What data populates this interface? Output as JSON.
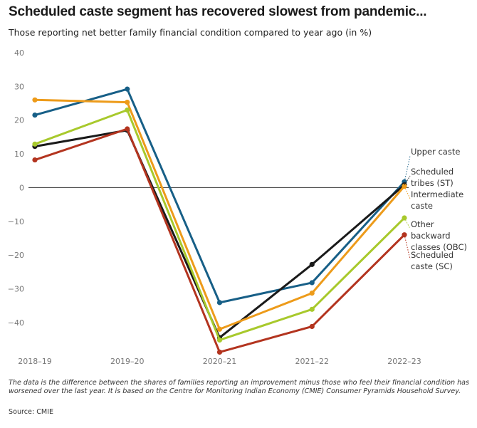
{
  "title": "Scheduled caste segment has recovered slowest from pandemic...",
  "subtitle": "Those reporting net better family financial condition compared to year ago (in %)",
  "note": "The data is the difference between the shares of families reporting an improvement minus those who feel their financial condition has worsened over the last year. It is based on the Centre for Monitoring Indian Economy (CMIE) Consumer Pyramids Household Survey.",
  "source": "Source: CMIE",
  "chart_data": {
    "type": "line",
    "title": "Scheduled caste segment has recovered slowest from pandemic...",
    "subtitle": "Those reporting net better family financial condition compared to year ago (in %)",
    "categories": [
      "2018–19",
      "2019–20",
      "2020–21",
      "2021–22",
      "2022–23"
    ],
    "ylim": [
      -50,
      40
    ],
    "yticks": [
      40,
      30,
      20,
      10,
      0,
      -10,
      -20,
      -30,
      -40
    ],
    "ytick_labels": [
      "40",
      "30",
      "20",
      "10",
      "0",
      "−10",
      "−20",
      "−30",
      "−40"
    ],
    "grid": false,
    "legend_placement": "right, labels at line ends",
    "series": [
      {
        "name": "Upper caste",
        "color": "#175f87",
        "values": [
          21.5,
          29.2,
          -34.1,
          -28.2,
          1.7
        ]
      },
      {
        "name": "Scheduled tribes (ST)",
        "color": "#1a1a1a",
        "values": [
          12.2,
          17.0,
          -44.5,
          -22.8,
          0.8
        ]
      },
      {
        "name": "Intermediate caste",
        "color": "#ed9b1a",
        "values": [
          26.0,
          25.3,
          -42.0,
          -31.3,
          0.4
        ]
      },
      {
        "name": "Other backward classes (OBC)",
        "color": "#a8c92c",
        "values": [
          12.9,
          23.0,
          -45.2,
          -36.1,
          -9.0
        ]
      },
      {
        "name": "Scheduled caste (SC)",
        "color": "#b3341f",
        "values": [
          8.2,
          17.4,
          -48.8,
          -41.2,
          -14.0
        ]
      }
    ]
  }
}
